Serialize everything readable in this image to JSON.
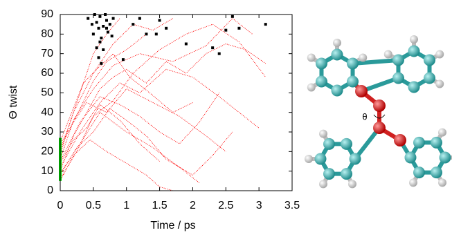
{
  "chart_data": {
    "type": "line",
    "xlabel": "Time / ps",
    "ylabel": "Θ twist",
    "xlim": [
      0,
      3.5
    ],
    "ylim": [
      0,
      90
    ],
    "xticks": [
      0,
      0.5,
      1,
      1.5,
      2,
      2.5,
      3,
      3.5
    ],
    "yticks": [
      0,
      10,
      20,
      30,
      40,
      50,
      60,
      70,
      80,
      90
    ],
    "annotation": "θ",
    "series": [
      {
        "type": "line",
        "style": "dotted",
        "color": "#ff0000",
        "x": [
          0,
          0.2,
          0.4,
          0.6,
          0.8,
          1.0,
          1.3,
          1.6,
          1.9,
          2.2,
          2.5,
          2.8,
          3.1
        ],
        "values": [
          10,
          28,
          40,
          52,
          58,
          62,
          55,
          66,
          60,
          70,
          75,
          72,
          65
        ]
      },
      {
        "type": "line",
        "style": "dotted",
        "color": "#ff0000",
        "x": [
          0,
          0.3,
          0.6,
          0.9,
          1.2,
          1.5,
          1.8,
          2.1,
          2.4
        ],
        "values": [
          15,
          35,
          48,
          44,
          38,
          30,
          24,
          35,
          50
        ]
      },
      {
        "type": "line",
        "style": "dotted",
        "color": "#ff0000",
        "x": [
          0,
          0.2,
          0.5,
          0.8,
          1.1,
          1.4,
          1.7
        ],
        "values": [
          20,
          40,
          60,
          75,
          85,
          82,
          88
        ]
      },
      {
        "type": "line",
        "style": "dotted",
        "color": "#ff0000",
        "x": [
          0,
          0.25,
          0.5,
          0.75,
          1.0,
          1.3,
          1.6,
          2.0,
          2.3,
          2.6
        ],
        "values": [
          8,
          22,
          30,
          42,
          36,
          28,
          16,
          8,
          18,
          30
        ]
      },
      {
        "type": "line",
        "style": "dotted",
        "color": "#ff0000",
        "x": [
          0,
          0.15,
          0.35,
          0.55,
          0.8,
          1.05,
          1.35,
          1.7,
          2.0
        ],
        "values": [
          25,
          38,
          55,
          62,
          70,
          58,
          50,
          40,
          45
        ]
      },
      {
        "type": "line",
        "style": "dotted",
        "color": "#ff0000",
        "x": [
          0,
          0.2,
          0.45,
          0.7,
          1.0,
          1.3,
          1.5,
          1.7
        ],
        "values": [
          5,
          18,
          26,
          20,
          14,
          8,
          2,
          0
        ]
      },
      {
        "type": "line",
        "style": "dotted",
        "color": "#ff0000",
        "x": [
          0,
          0.3,
          0.6,
          0.9,
          1.2,
          1.6,
          2.0,
          2.4,
          2.7,
          3.0
        ],
        "values": [
          12,
          30,
          45,
          55,
          50,
          62,
          58,
          48,
          40,
          32
        ]
      },
      {
        "type": "line",
        "style": "dotted",
        "color": "#ff0000",
        "x": [
          0,
          0.1,
          0.3,
          0.5,
          0.7,
          0.9
        ],
        "values": [
          18,
          30,
          50,
          70,
          80,
          88
        ]
      },
      {
        "type": "line",
        "style": "dotted",
        "color": "#ff0000",
        "x": [
          0,
          0.2,
          0.4,
          0.7,
          1.0,
          1.4,
          1.8,
          2.2,
          2.5
        ],
        "values": [
          22,
          35,
          45,
          40,
          52,
          45,
          38,
          28,
          20
        ]
      },
      {
        "type": "line",
        "style": "dotted",
        "color": "#ff0000",
        "x": [
          0,
          0.25,
          0.5,
          0.8,
          1.1,
          1.5,
          1.9,
          2.3,
          2.7,
          3.1
        ],
        "values": [
          6,
          20,
          38,
          46,
          60,
          72,
          80,
          85,
          76,
          58
        ]
      },
      {
        "type": "line",
        "style": "dotted",
        "color": "#ff0000",
        "x": [
          0,
          0.2,
          0.4,
          0.6,
          0.9,
          1.2,
          1.5
        ],
        "values": [
          14,
          26,
          32,
          44,
          36,
          24,
          15
        ]
      },
      {
        "type": "line",
        "style": "dotted",
        "color": "#ff0000",
        "x": [
          0,
          0.15,
          0.3,
          0.5,
          0.7,
          1.0,
          1.3
        ],
        "values": [
          24,
          32,
          42,
          56,
          66,
          72,
          80
        ]
      },
      {
        "type": "line",
        "style": "dotted",
        "color": "#ff0000",
        "x": [
          0,
          0.3,
          0.6,
          1.0,
          1.4,
          1.8,
          2.1
        ],
        "values": [
          9,
          24,
          40,
          30,
          22,
          12,
          4
        ]
      },
      {
        "type": "line",
        "style": "dotted",
        "color": "#ff0000",
        "x": [
          0,
          0.2,
          0.5,
          0.8,
          1.2,
          1.7,
          2.2,
          2.6,
          2.9
        ],
        "values": [
          16,
          36,
          52,
          64,
          70,
          66,
          74,
          88,
          80
        ]
      },
      {
        "type": "line",
        "style": "solid",
        "color": "#00cc00",
        "x": [
          0,
          0
        ],
        "values": [
          5,
          27
        ]
      },
      {
        "type": "scatter",
        "color": "#000000",
        "x": [
          0.42,
          0.48,
          0.5,
          0.52,
          0.55,
          0.58,
          0.6,
          0.62,
          0.65,
          0.68,
          0.7,
          0.72,
          0.75,
          0.78,
          0.8,
          0.55,
          0.6,
          0.65,
          0.7,
          0.58,
          0.62,
          0.95,
          1.1,
          1.2,
          1.3,
          1.45,
          1.5,
          1.6,
          1.9,
          2.3,
          2.4,
          2.5,
          2.6,
          2.7,
          3.1
        ],
        "values": [
          88,
          85,
          80,
          90,
          86,
          83,
          89,
          78,
          84,
          90,
          87,
          81,
          85,
          79,
          88,
          73,
          76,
          72,
          83,
          68,
          65,
          67,
          85,
          88,
          80,
          80,
          87,
          83,
          75,
          73,
          70,
          82,
          89,
          83,
          85
        ]
      }
    ]
  }
}
